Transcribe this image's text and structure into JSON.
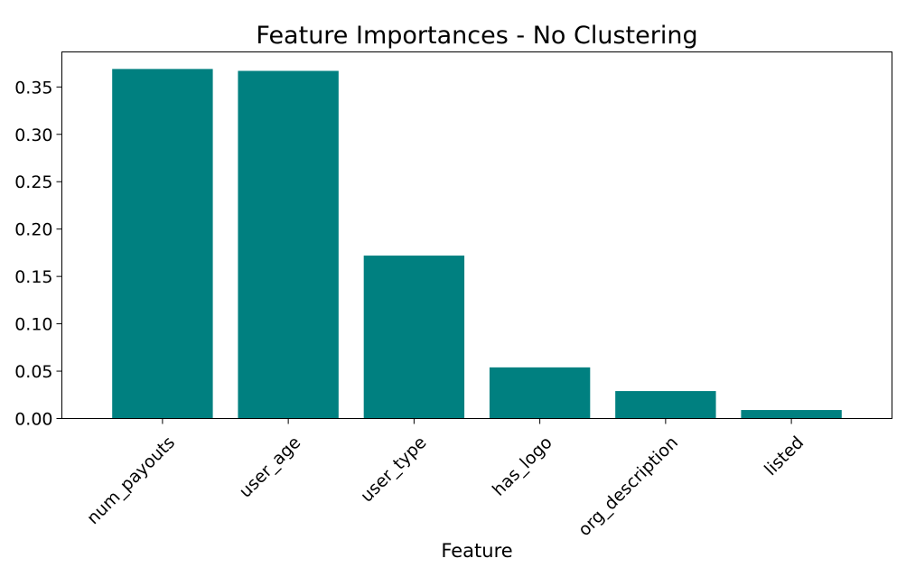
{
  "chart_data": {
    "type": "bar",
    "title": "Feature Importances - No Clustering",
    "xlabel": "Feature",
    "ylabel": "",
    "categories": [
      "num_payouts",
      "user_age",
      "user_type",
      "has_logo",
      "org_description",
      "listed"
    ],
    "values": [
      0.369,
      0.367,
      0.172,
      0.054,
      0.029,
      0.009
    ],
    "ylim": [
      0,
      0.387
    ],
    "yticks": [
      "0.00",
      "0.05",
      "0.10",
      "0.15",
      "0.20",
      "0.25",
      "0.30",
      "0.35"
    ],
    "bar_color": "#008080",
    "grid": false,
    "legend": "none"
  }
}
